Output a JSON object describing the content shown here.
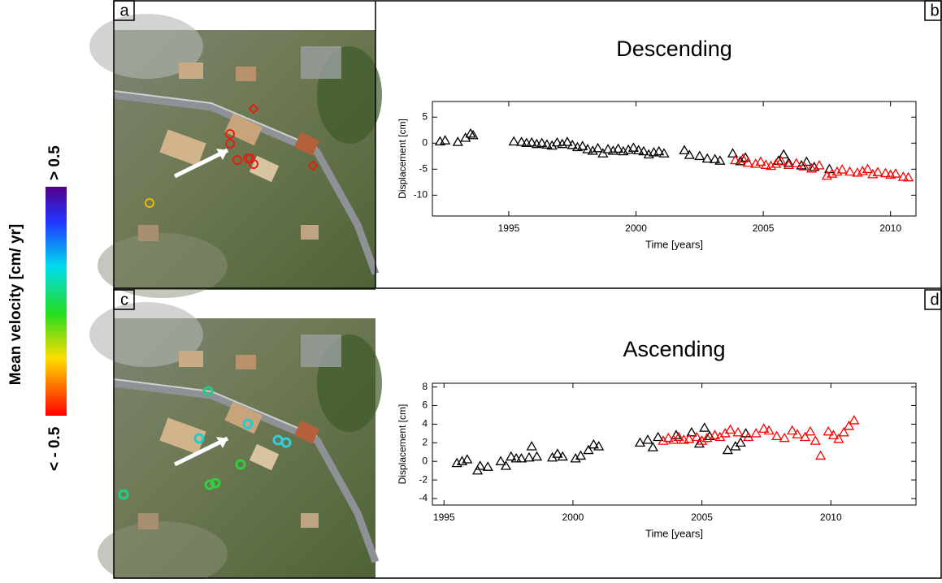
{
  "panel_labels": [
    "a",
    "b",
    "c",
    "d"
  ],
  "colorbar": {
    "title": "Mean velocity [cm/ yr]",
    "max_label": "> 0.5",
    "min_label": "< - 0.5"
  },
  "chart_data": [
    {
      "type": "scatter",
      "title": "Descending",
      "x_label": "Time [years]",
      "y_label": "Displacement [cm]",
      "marker": "triangle",
      "xlim": [
        1992,
        2011
      ],
      "xticks": [
        1995,
        2000,
        2005,
        2010
      ],
      "ylim": [
        -14,
        8
      ],
      "yticks": [
        -10,
        -5,
        0,
        5
      ],
      "series": [
        {
          "color": "#000000",
          "x": [
            1992.3,
            1992.5,
            1993.0,
            1993.3,
            1993.5,
            1993.6,
            1995.2,
            1995.5,
            1995.7,
            1995.9,
            1996.1,
            1996.3,
            1996.5,
            1996.7,
            1996.9,
            1997.1,
            1997.3,
            1997.5,
            1997.7,
            1997.9,
            1998.1,
            1998.3,
            1998.5,
            1998.7,
            1998.9,
            1999.1,
            1999.3,
            1999.5,
            1999.7,
            1999.9,
            2000.1,
            2000.3,
            2000.5,
            2000.7,
            2000.9,
            2001.1,
            2001.9,
            2002.1,
            2002.5,
            2002.8,
            2003.1,
            2003.3,
            2003.8,
            2004.1,
            2004.3,
            2005.6,
            2005.8,
            2006.0,
            2006.5,
            2006.7,
            2007.0,
            2007.6
          ],
          "values": [
            0.3,
            0.5,
            0.2,
            1.0,
            1.8,
            1.5,
            0.3,
            0.2,
            0,
            0.1,
            -0.2,
            0,
            -0.3,
            -0.5,
            0.1,
            -0.2,
            0.2,
            -0.4,
            -0.8,
            -0.6,
            -1.2,
            -1.5,
            -1.0,
            -2.0,
            -1.2,
            -1.5,
            -1.1,
            -1.6,
            -1.3,
            -0.9,
            -1.4,
            -1.6,
            -2.2,
            -1.8,
            -1.6,
            -2.0,
            -1.4,
            -2.3,
            -2.5,
            -3.0,
            -3.1,
            -3.4,
            -2.0,
            -3.5,
            -2.8,
            -3.4,
            -2.2,
            -3.8,
            -4.3,
            -3.6,
            -4.6,
            -5.0
          ]
        },
        {
          "color": "#ff0000",
          "x": [
            2003.9,
            2004.2,
            2004.4,
            2004.7,
            2004.9,
            2005.1,
            2005.3,
            2005.5,
            2005.7,
            2006.0,
            2006.3,
            2006.6,
            2006.9,
            2007.2,
            2007.5,
            2007.7,
            2007.9,
            2008.1,
            2008.4,
            2008.7,
            2008.9,
            2009.1,
            2009.3,
            2009.5,
            2009.8,
            2010.0,
            2010.2,
            2010.5,
            2010.7
          ],
          "values": [
            -3.3,
            -3.0,
            -3.8,
            -4.0,
            -3.6,
            -4.2,
            -4.4,
            -4.0,
            -3.5,
            -4.2,
            -3.9,
            -4.5,
            -4.9,
            -4.3,
            -6.3,
            -5.9,
            -5.5,
            -5.1,
            -5.5,
            -5.7,
            -5.4,
            -5.0,
            -6.0,
            -5.6,
            -5.8,
            -6.1,
            -5.9,
            -6.5,
            -6.6
          ]
        }
      ]
    },
    {
      "type": "scatter",
      "title": "Ascending",
      "x_label": "Time [years]",
      "y_label": "Displacement [cm]",
      "marker": "triangle",
      "xlim": [
        1994.55,
        2013.3
      ],
      "xticks": [
        1995,
        2000,
        2005,
        2010
      ],
      "ylim": [
        -4.7,
        8.4
      ],
      "yticks": [
        -4,
        -2,
        0,
        2,
        4,
        6,
        8
      ],
      "series": [
        {
          "color": "#000000",
          "x": [
            1995.5,
            1995.7,
            1995.9,
            1996.3,
            1996.4,
            1996.7,
            1997.2,
            1997.4,
            1997.6,
            1997.8,
            1998.0,
            1998.3,
            1998.4,
            1998.6,
            1999.2,
            1999.4,
            1999.6,
            2000.1,
            2000.3,
            2000.6,
            2000.8,
            2001.0,
            2002.6,
            2002.9,
            2003.1,
            2003.3,
            2004.0,
            2004.6,
            2004.9,
            2005.1,
            2005.3,
            2006.0,
            2006.3,
            2006.5,
            2006.7
          ],
          "values": [
            -0.2,
            0,
            0.2,
            -1.0,
            -0.5,
            -0.6,
            0,
            -0.5,
            0.5,
            0.3,
            0.3,
            0.4,
            1.6,
            0.5,
            0.4,
            0.8,
            0.5,
            0.3,
            0.6,
            1.2,
            1.8,
            1.6,
            2.0,
            2.3,
            1.5,
            2.6,
            2.8,
            3.1,
            1.9,
            3.6,
            2.7,
            1.2,
            1.6,
            2.0,
            3.0
          ]
        },
        {
          "color": "#ff0000",
          "x": [
            2003.5,
            2003.7,
            2003.9,
            2004.1,
            2004.3,
            2004.5,
            2004.8,
            2005.0,
            2005.2,
            2005.5,
            2005.7,
            2005.9,
            2006.1,
            2006.4,
            2006.8,
            2007.1,
            2007.4,
            2007.6,
            2007.9,
            2008.2,
            2008.5,
            2008.7,
            2009.0,
            2009.2,
            2009.4,
            2009.6,
            2009.9,
            2010.1,
            2010.3,
            2010.5,
            2010.7,
            2010.9
          ],
          "values": [
            2.2,
            2.5,
            2.3,
            2.6,
            2.3,
            2.4,
            2.6,
            2.2,
            2.5,
            2.8,
            2.6,
            3.0,
            3.4,
            3.1,
            2.6,
            3.0,
            3.5,
            3.3,
            2.7,
            2.5,
            3.3,
            2.9,
            2.6,
            3.2,
            2.2,
            0.6,
            3.2,
            2.8,
            2.4,
            3.1,
            3.8,
            4.4
          ]
        }
      ]
    }
  ]
}
